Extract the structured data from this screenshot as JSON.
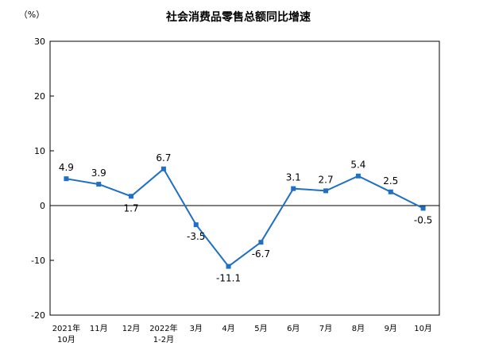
{
  "chart_data": {
    "type": "line",
    "title": "社会消费品零售总额同比增速",
    "unit_label": "（%）",
    "xlabel": "",
    "ylabel": "",
    "ylim": [
      -20,
      30
    ],
    "yticks": [
      30,
      20,
      10,
      0,
      -10,
      -20
    ],
    "grid": false,
    "legend": "none",
    "categories": [
      [
        "2021年",
        "10月"
      ],
      [
        "11月"
      ],
      [
        "12月"
      ],
      [
        "2022年",
        "1-2月"
      ],
      [
        "3月"
      ],
      [
        "4月"
      ],
      [
        "5月"
      ],
      [
        "6月"
      ],
      [
        "7月"
      ],
      [
        "8月"
      ],
      [
        "9月"
      ],
      [
        "10月"
      ]
    ],
    "series": [
      {
        "values": [
          4.9,
          3.9,
          1.7,
          6.7,
          -3.5,
          -11.1,
          -6.7,
          3.1,
          2.7,
          5.4,
          2.5,
          -0.5
        ],
        "labels": [
          "4.9",
          "3.9",
          "1.7",
          "6.7",
          "-3.5",
          "-11.1",
          "-6.7",
          "3.1",
          "2.7",
          "5.4",
          "2.5",
          "-0.5"
        ],
        "color": "#1f6fc5"
      }
    ]
  }
}
